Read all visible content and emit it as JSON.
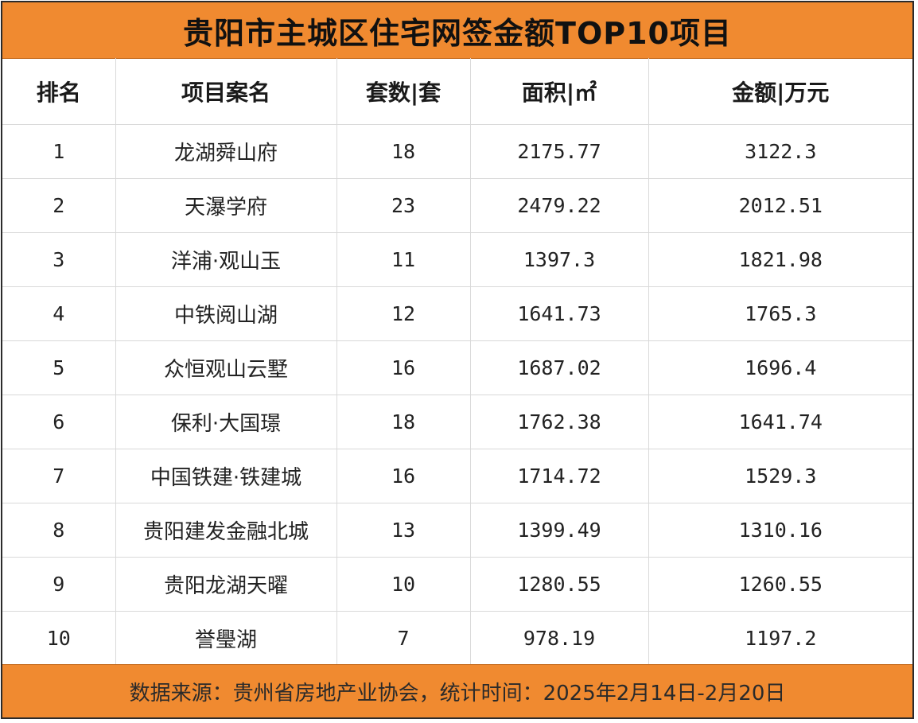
{
  "title": "贵阳市主城区住宅网签金额TOP10项目",
  "headers": {
    "rank": "排名",
    "project": "项目案名",
    "units": "套数|套",
    "area": "面积|㎡",
    "amount": "金额|万元"
  },
  "rows": [
    {
      "rank": "1",
      "project": "龙湖舜山府",
      "units": "18",
      "area": "2175.77",
      "amount": "3122.3"
    },
    {
      "rank": "2",
      "project": "天瀑学府",
      "units": "23",
      "area": "2479.22",
      "amount": "2012.51"
    },
    {
      "rank": "3",
      "project": "洋浦·观山玉",
      "units": "11",
      "area": "1397.3",
      "amount": "1821.98"
    },
    {
      "rank": "4",
      "project": "中铁阅山湖",
      "units": "12",
      "area": "1641.73",
      "amount": "1765.3"
    },
    {
      "rank": "5",
      "project": "众恒观山云墅",
      "units": "16",
      "area": "1687.02",
      "amount": "1696.4"
    },
    {
      "rank": "6",
      "project": "保利·大国璟",
      "units": "18",
      "area": "1762.38",
      "amount": "1641.74"
    },
    {
      "rank": "7",
      "project": "中国铁建·铁建城",
      "units": "16",
      "area": "1714.72",
      "amount": "1529.3"
    },
    {
      "rank": "8",
      "project": "贵阳建发金融北城",
      "units": "13",
      "area": "1399.49",
      "amount": "1310.16"
    },
    {
      "rank": "9",
      "project": "贵阳龙湖天曜",
      "units": "10",
      "area": "1280.55",
      "amount": "1260.55"
    },
    {
      "rank": "10",
      "project": "誉璺湖",
      "units": "7",
      "area": "978.19",
      "amount": "1197.2"
    }
  ],
  "footer": "数据来源：贵州省房地产业协会，统计时间：2025年2月14日-2月20日",
  "colors": {
    "accent": "#f08a30",
    "border": "#d9d9d9",
    "frame": "#2b2b2b"
  }
}
